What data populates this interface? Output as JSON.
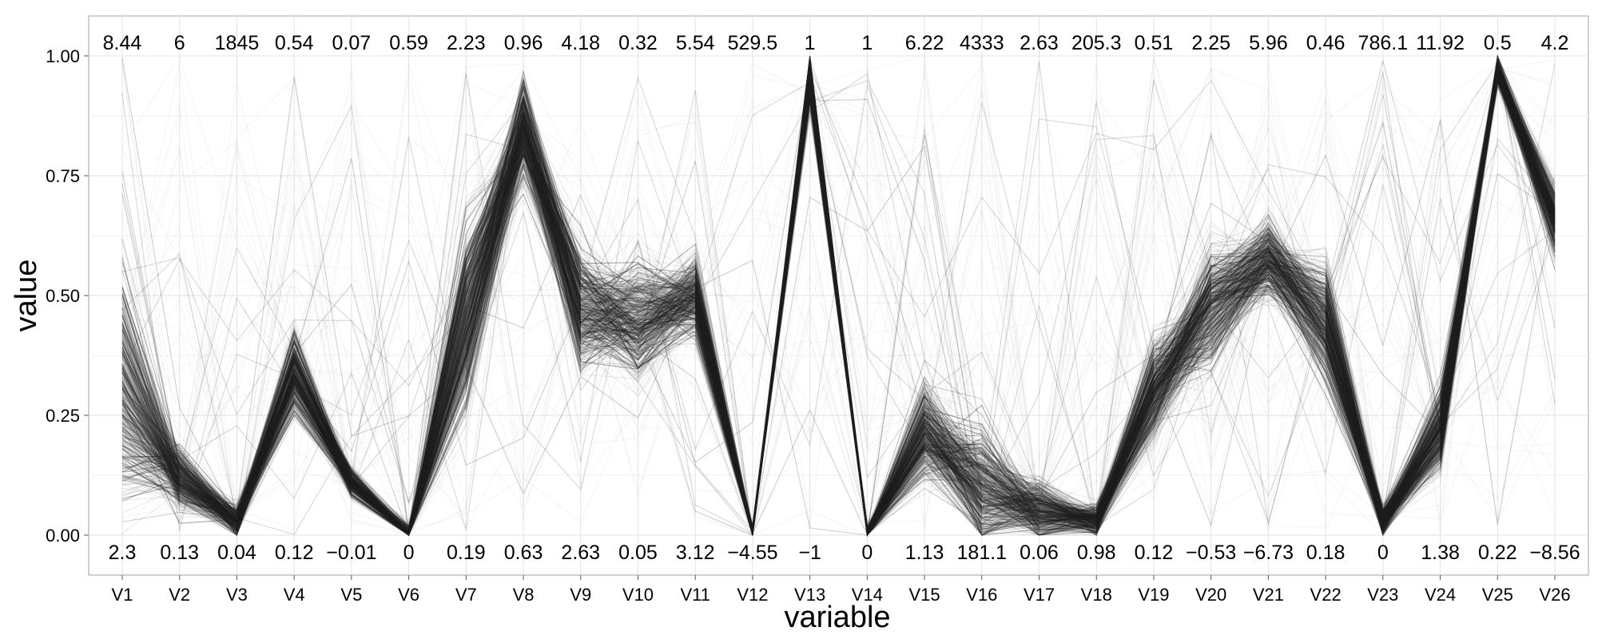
{
  "chart_data": {
    "type": "parallel-coordinates",
    "xlabel": "variable",
    "ylabel": "value",
    "ylim": [
      0,
      1
    ],
    "yticks": [
      "0.00",
      "0.25",
      "0.50",
      "0.75",
      "1.00"
    ],
    "ytick_values": [
      0,
      0.25,
      0.5,
      0.75,
      1
    ],
    "grid": true,
    "line_color": "#2b2b2b",
    "variables": [
      "V1",
      "V2",
      "V3",
      "V4",
      "V5",
      "V6",
      "V7",
      "V8",
      "V9",
      "V10",
      "V11",
      "V12",
      "V13",
      "V14",
      "V15",
      "V16",
      "V17",
      "V18",
      "V19",
      "V20",
      "V21",
      "V22",
      "V23",
      "V24",
      "V25",
      "V26"
    ],
    "max_labels": [
      "8.44",
      "6",
      "1845",
      "0.54",
      "0.07",
      "0.59",
      "2.23",
      "0.96",
      "4.18",
      "0.32",
      "5.54",
      "529.5",
      "1",
      "1",
      "6.22",
      "4333",
      "2.63",
      "205.3",
      "0.51",
      "2.25",
      "5.96",
      "0.46",
      "786.1",
      "11.92",
      "0.5",
      "4.2"
    ],
    "min_labels": [
      "2.3",
      "0.13",
      "0.04",
      "0.12",
      "−0.01",
      "0",
      "0.19",
      "0.63",
      "2.63",
      "0.05",
      "3.12",
      "−4.55",
      "−1",
      "0",
      "1.13",
      "181.1",
      "0.06",
      "0.98",
      "0.12",
      "−0.53",
      "−6.73",
      "0.18",
      "0",
      "1.38",
      "0.22",
      "−8.56"
    ],
    "typical_profile": [
      0.3,
      0.12,
      0.03,
      0.34,
      0.11,
      0.0,
      0.45,
      0.85,
      0.47,
      0.45,
      0.5,
      0.0,
      0.95,
      0.0,
      0.22,
      0.1,
      0.05,
      0.03,
      0.3,
      0.48,
      0.58,
      0.45,
      0.03,
      0.22,
      0.97,
      0.66
    ],
    "spread": [
      0.22,
      0.06,
      0.03,
      0.08,
      0.03,
      0.02,
      0.2,
      0.1,
      0.12,
      0.12,
      0.08,
      0.02,
      0.05,
      0.02,
      0.1,
      0.12,
      0.06,
      0.03,
      0.1,
      0.12,
      0.08,
      0.12,
      0.03,
      0.08,
      0.03,
      0.07
    ]
  }
}
